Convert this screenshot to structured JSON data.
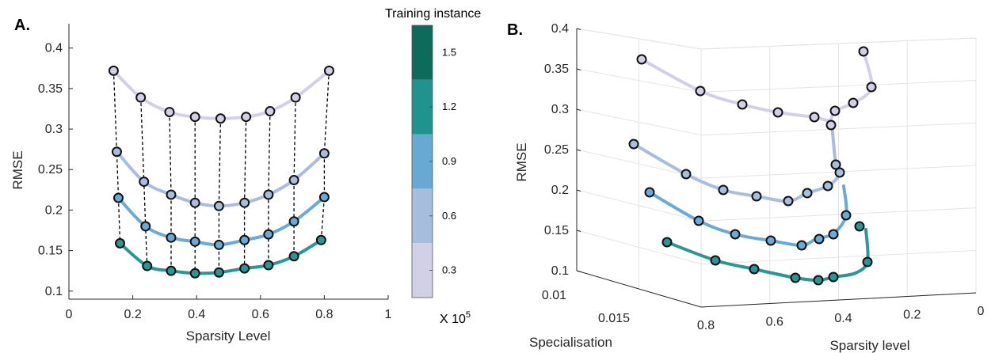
{
  "chart_data": [
    {
      "type": "line",
      "panel_label": "A.",
      "xlabel": "Sparsity Level",
      "ylabel": "RMSE",
      "xlim": [
        0,
        1
      ],
      "ylim": [
        0.09,
        0.43
      ],
      "xticks": [
        0,
        0.2,
        0.4,
        0.6,
        0.8,
        1
      ],
      "xtick_labels": [
        "0",
        "0.2",
        "0.4",
        "0.6",
        "0.8",
        "1"
      ],
      "yticks": [
        0.1,
        0.15,
        0.2,
        0.25,
        0.3,
        0.35,
        0.4
      ],
      "ytick_labels": [
        "0.1",
        "0.15",
        "0.2",
        "0.25",
        "0.3",
        "0.35",
        "0.4"
      ],
      "series": [
        {
          "training_instance": 0.3,
          "color": "#d2d0e6",
          "x": [
            0.14,
            0.225,
            0.315,
            0.395,
            0.475,
            0.555,
            0.63,
            0.71,
            0.815
          ],
          "y": [
            0.372,
            0.339,
            0.321,
            0.315,
            0.313,
            0.315,
            0.322,
            0.339,
            0.372
          ]
        },
        {
          "training_instance": 0.6,
          "color": "#a7bedf",
          "x": [
            0.15,
            0.235,
            0.32,
            0.395,
            0.47,
            0.55,
            0.625,
            0.705,
            0.8
          ],
          "y": [
            0.272,
            0.235,
            0.219,
            0.209,
            0.205,
            0.209,
            0.219,
            0.237,
            0.27
          ]
        },
        {
          "training_instance": 0.9,
          "color": "#6aaad6",
          "x": [
            0.155,
            0.24,
            0.32,
            0.395,
            0.47,
            0.55,
            0.625,
            0.705,
            0.8
          ],
          "y": [
            0.215,
            0.18,
            0.166,
            0.161,
            0.157,
            0.163,
            0.17,
            0.186,
            0.216
          ]
        },
        {
          "training_instance": 1.2,
          "color": "#2a9696",
          "x": [
            0.16,
            0.245,
            0.32,
            0.395,
            0.47,
            0.55,
            0.625,
            0.705,
            0.79
          ],
          "y": [
            0.159,
            0.131,
            0.125,
            0.122,
            0.123,
            0.128,
            0.132,
            0.143,
            0.163
          ]
        }
      ],
      "dashed_connectors": true
    },
    {
      "type": "line",
      "panel_label": "B.",
      "xlabel": "Sparsity level",
      "ylabel": "RMSE",
      "zlabel": "Specialisation",
      "yticks": [
        0.1,
        0.15,
        0.2,
        0.25,
        0.3,
        0.35,
        0.4
      ],
      "ytick_labels": [
        "0.1",
        "0.15",
        "0.2",
        "0.25",
        "0.3",
        "0.35",
        "0.4"
      ],
      "xtick_labels": [
        "0.8",
        "0.6",
        "0.4",
        "0.2",
        "0"
      ],
      "specialisation_tick_labels": [
        "0.01",
        "0.015"
      ],
      "series_colors": [
        "#d2d0e6",
        "#a7bedf",
        "#6aaad6",
        "#2a9696"
      ]
    }
  ],
  "colorbar": {
    "title": "Training instance",
    "tick_labels": [
      "1.5",
      "1.2",
      "0.9",
      "0.6",
      "0.3"
    ],
    "bands": [
      "#0c6b5a",
      "#20938f",
      "#67a9d3",
      "#a6bddd",
      "#d2d0e6"
    ],
    "multiplier": "X 10",
    "multiplier_exp": "5"
  }
}
